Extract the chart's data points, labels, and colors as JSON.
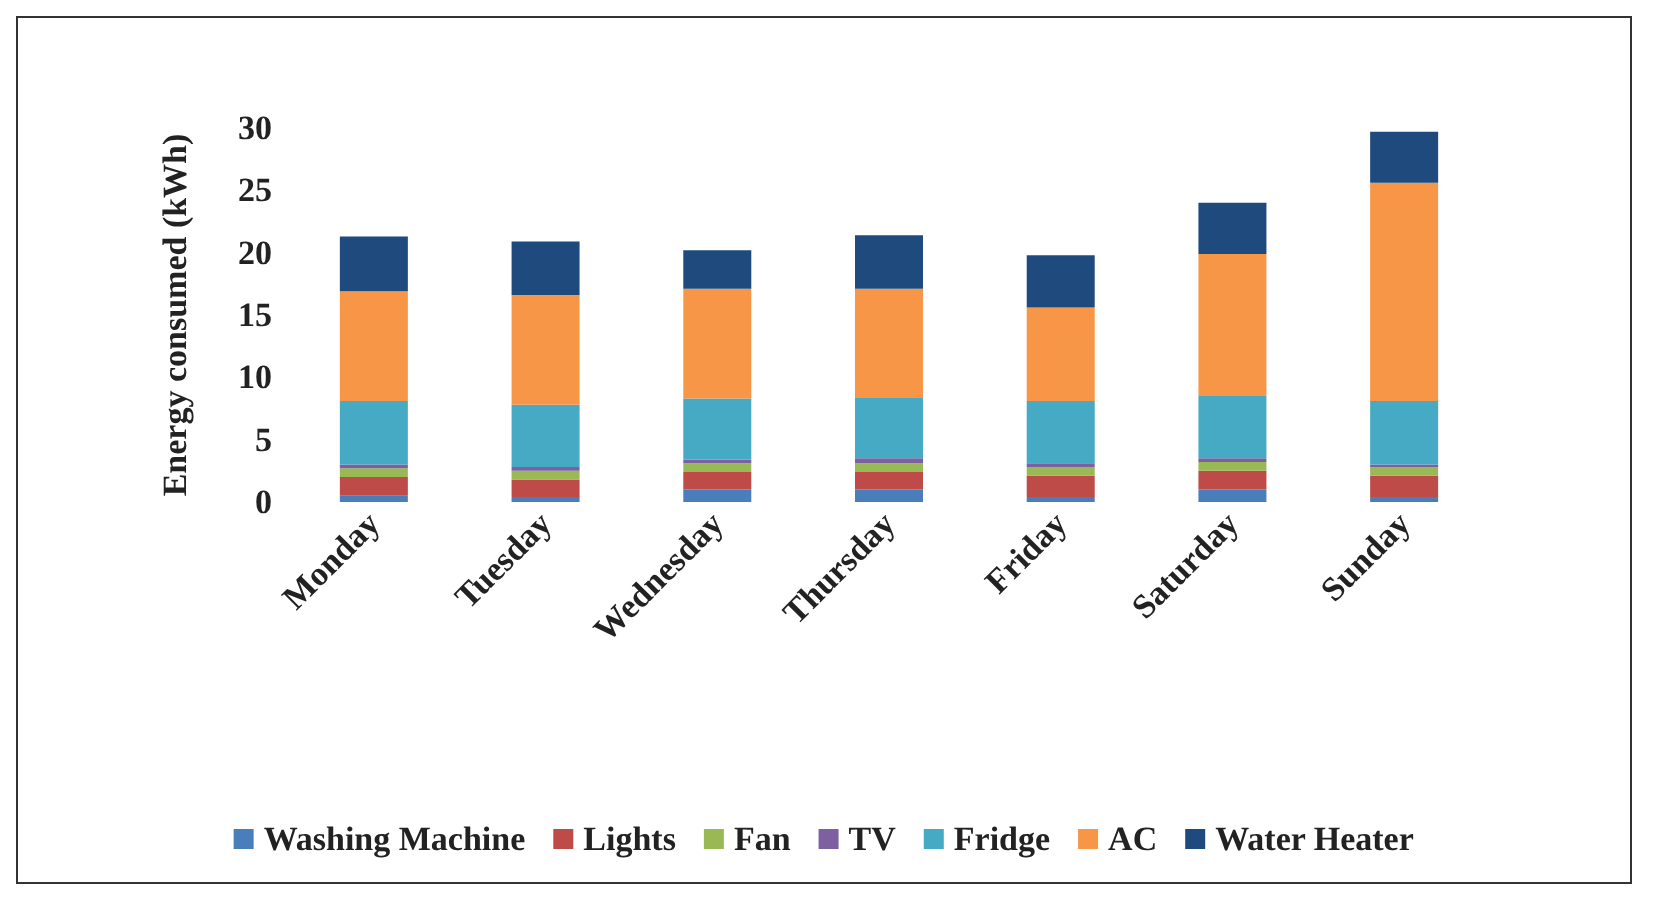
{
  "chart_data": {
    "type": "bar",
    "stacked": true,
    "ylabel": "Energy consumed (kWh)",
    "categories": [
      "Monday",
      "Tuesday",
      "Wednesday",
      "Thursday",
      "Friday",
      "Saturday",
      "Sunday"
    ],
    "series": [
      {
        "name": "Washing Machine",
        "color": "#4a7ebb",
        "values": [
          0.5,
          0.4,
          1.0,
          1.0,
          0.4,
          1.0,
          0.4
        ]
      },
      {
        "name": "Lights",
        "color": "#be4b48",
        "values": [
          1.5,
          1.4,
          1.4,
          1.4,
          1.7,
          1.5,
          1.7
        ]
      },
      {
        "name": "Fan",
        "color": "#98b954",
        "values": [
          0.7,
          0.7,
          0.7,
          0.7,
          0.7,
          0.7,
          0.7
        ]
      },
      {
        "name": "TV",
        "color": "#7d60a0",
        "values": [
          0.3,
          0.3,
          0.3,
          0.4,
          0.3,
          0.3,
          0.2
        ]
      },
      {
        "name": "Fridge",
        "color": "#46aac5",
        "values": [
          5.1,
          5.0,
          4.9,
          4.9,
          5.0,
          5.0,
          5.1
        ]
      },
      {
        "name": "AC",
        "color": "#f79646",
        "values": [
          8.8,
          8.8,
          8.8,
          8.7,
          7.5,
          11.4,
          17.5
        ]
      },
      {
        "name": "Water Heater",
        "color": "#1f4a7d",
        "values": [
          4.4,
          4.3,
          3.1,
          4.3,
          4.2,
          4.1,
          4.1
        ]
      }
    ],
    "ylim": [
      0,
      30
    ],
    "yticks": [
      0,
      5,
      10,
      15,
      20,
      25,
      30
    ],
    "grid": false,
    "legend": "bottom"
  }
}
